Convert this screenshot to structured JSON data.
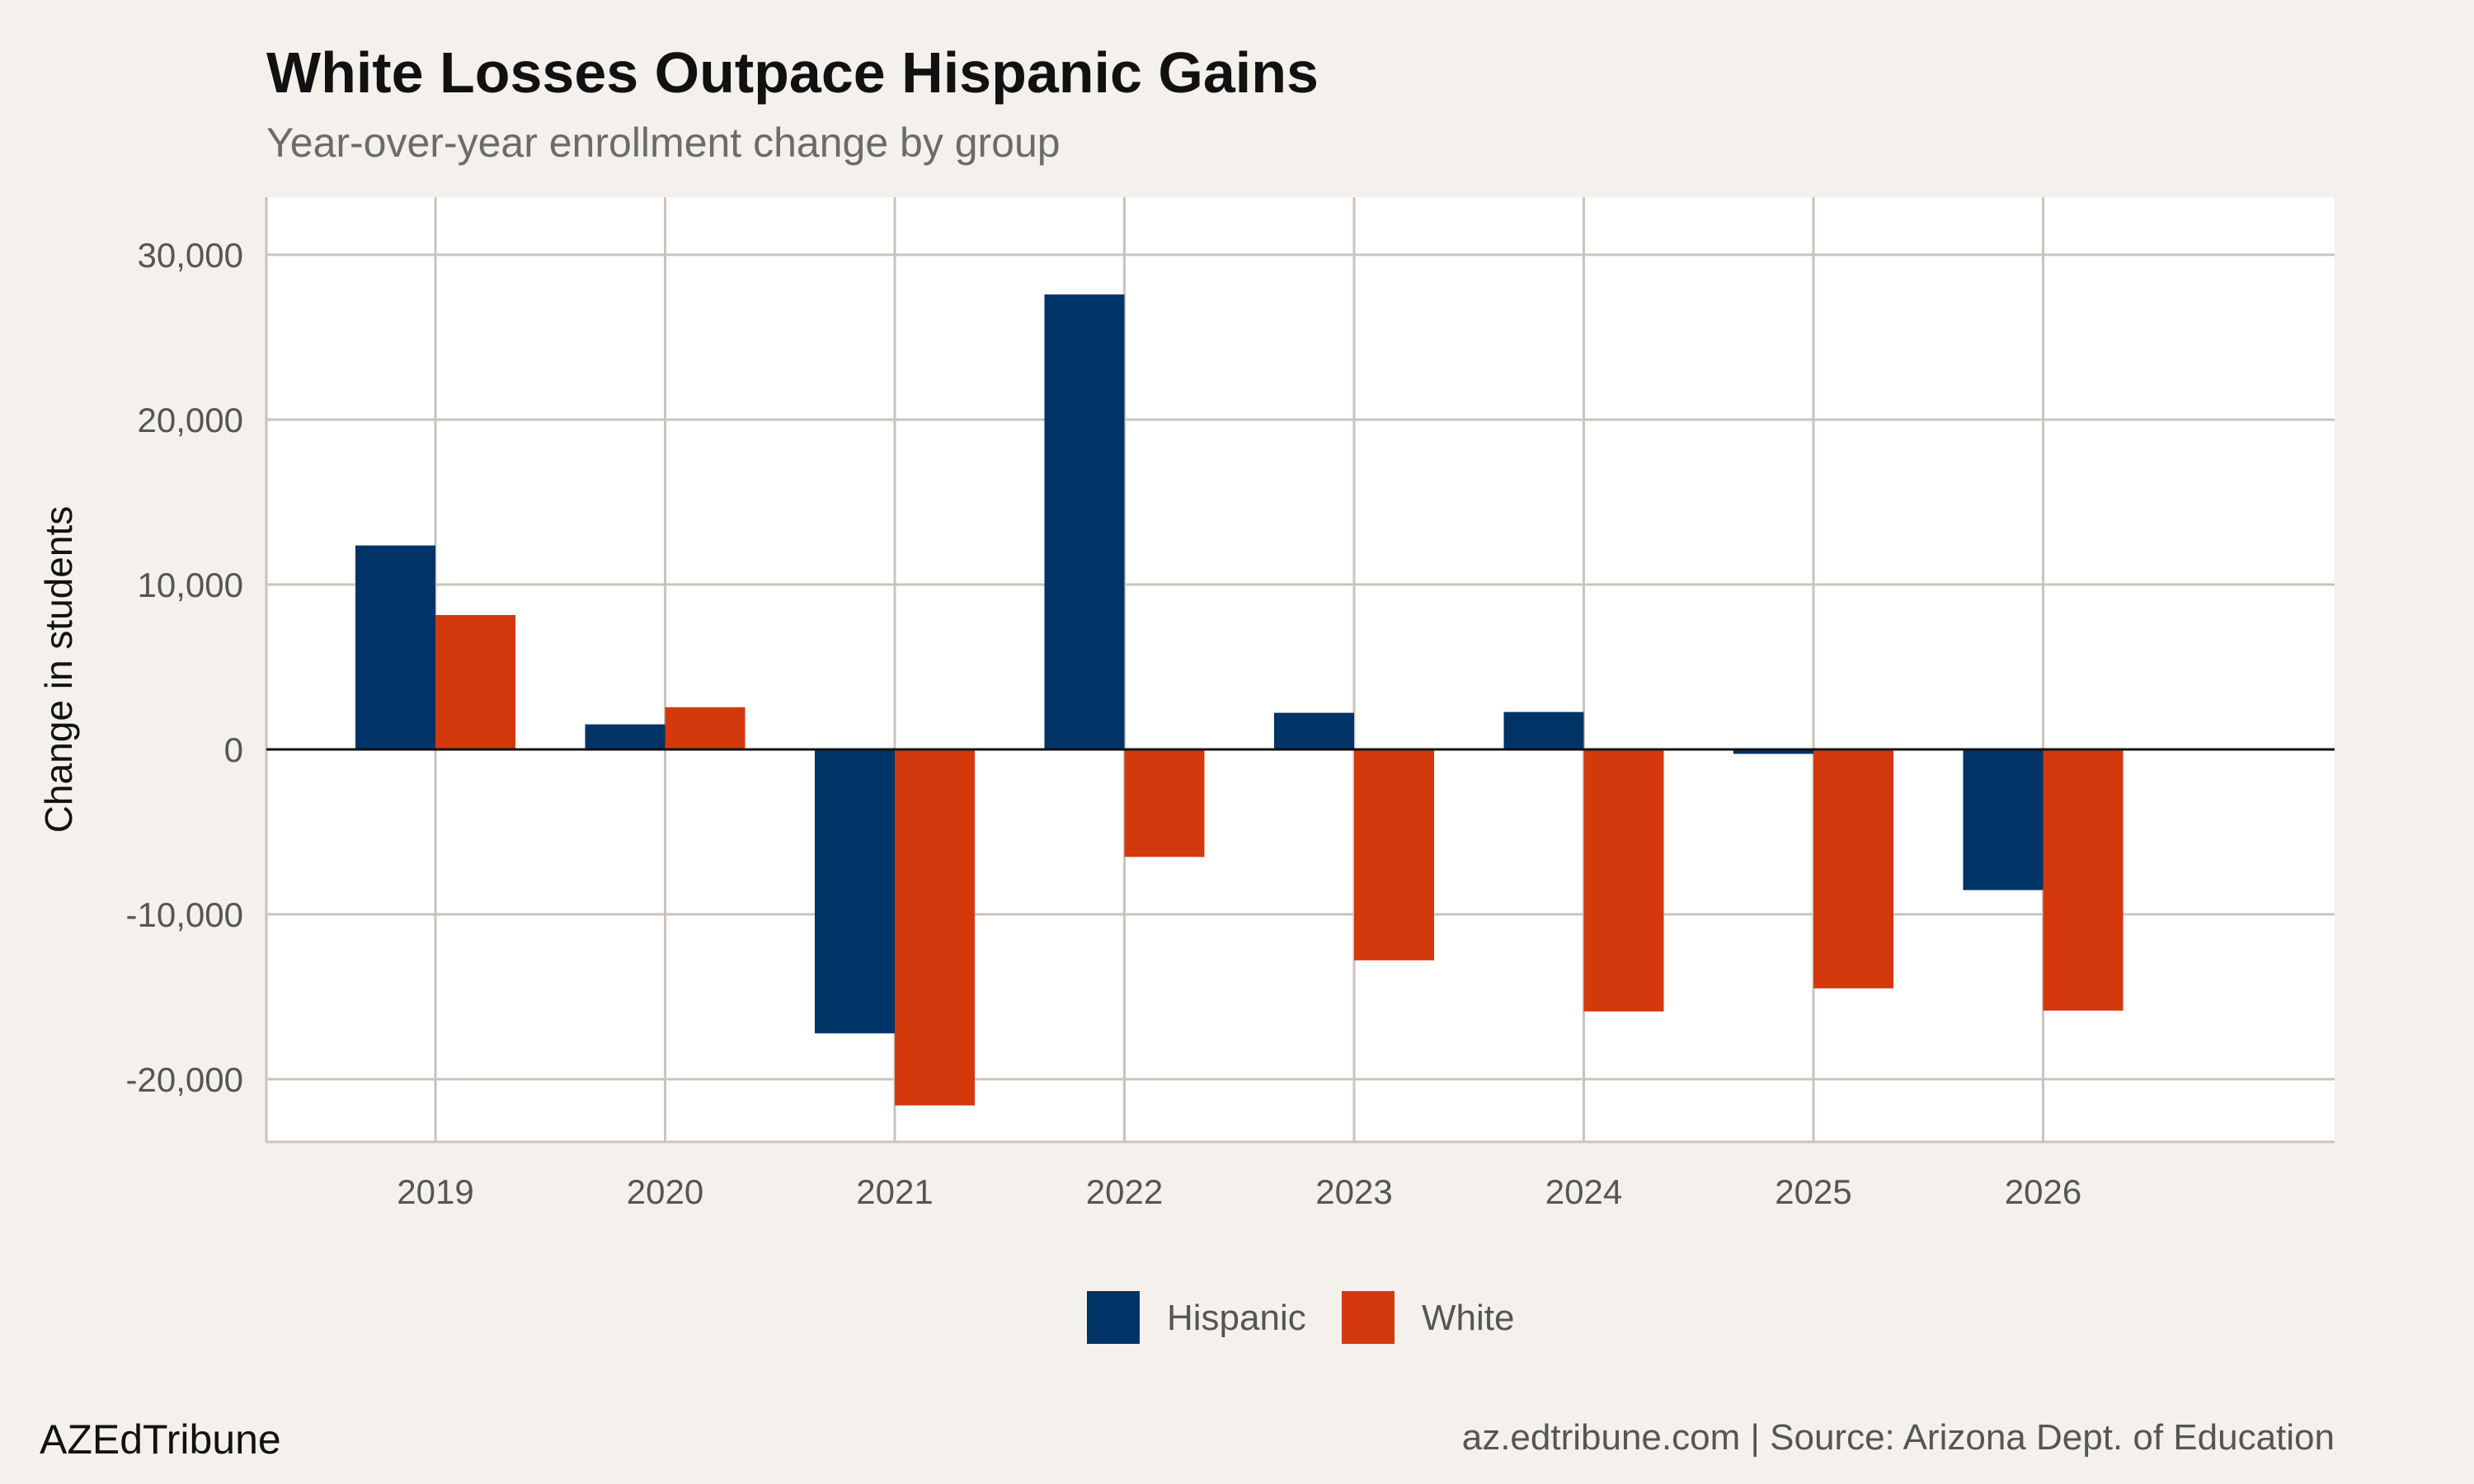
{
  "chart_data": {
    "type": "bar",
    "title": "White Losses Outpace Hispanic Gains",
    "subtitle": "Year-over-year enrollment change by group",
    "xlabel": "",
    "ylabel": "Change in students",
    "categories": [
      "2019",
      "2020",
      "2021",
      "2022",
      "2023",
      "2024",
      "2025",
      "2026"
    ],
    "series": [
      {
        "name": "Hispanic",
        "color": "#003366",
        "values": [
          12370,
          1520,
          -17220,
          27590,
          2220,
          2270,
          -270,
          -8530
        ]
      },
      {
        "name": "White",
        "color": "#d4380d",
        "values": [
          8150,
          2560,
          -21590,
          -6520,
          -12790,
          -15890,
          -14490,
          -15840
        ]
      }
    ],
    "ylim": [
      -23800,
      33500
    ],
    "yticks": [
      30000,
      20000,
      10000,
      0,
      -10000,
      -20000
    ],
    "ytick_labels": [
      "30,000",
      "20,000",
      "10,000",
      "0",
      "-10,000",
      "-20,000"
    ],
    "grid": true,
    "legend": "bottom"
  },
  "footer": {
    "brand": "AZEdTribune",
    "source": "az.edtribune.com | Source: Arizona Dept. of Education"
  }
}
